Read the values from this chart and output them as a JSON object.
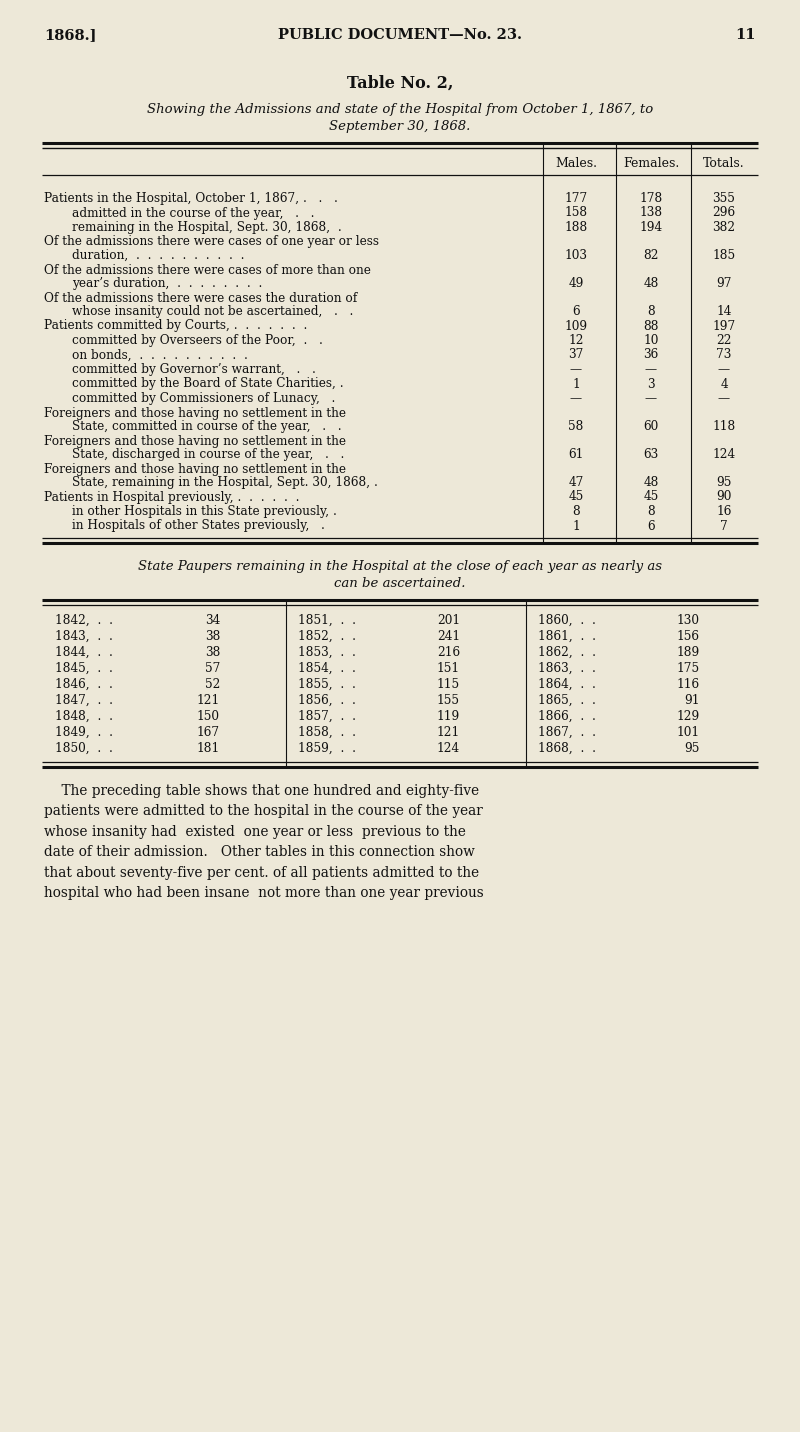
{
  "bg_color": "#ede8d8",
  "text_color": "#1a1a1a",
  "col_headers": [
    "Males.",
    "Females.",
    "Totals."
  ],
  "rows": [
    {
      "label": "Patients in the Hospital, October 1, 1867, .   .   .",
      "indent": 0,
      "vals": [
        "177",
        "178",
        "355"
      ],
      "multiline": false
    },
    {
      "label": "admitted in the course of the year,   .   .",
      "indent": 1,
      "vals": [
        "158",
        "138",
        "296"
      ],
      "multiline": false
    },
    {
      "label": "remaining in the Hospital, Sept. 30, 1868,  .",
      "indent": 1,
      "vals": [
        "188",
        "194",
        "382"
      ],
      "multiline": false
    },
    {
      "label1": "Of the admissions there were cases of one year or less",
      "label2": "duration,  .  .  .  .  .  .  .  .  .  .",
      "indent": 0,
      "vals": [
        "103",
        "82",
        "185"
      ],
      "multiline": true
    },
    {
      "label1": "Of the admissions there were cases of more than one",
      "label2": "year’s duration,  .  .  .  .  .  .  .  .",
      "indent": 0,
      "vals": [
        "49",
        "48",
        "97"
      ],
      "multiline": true
    },
    {
      "label1": "Of the admissions there were cases the duration of",
      "label2": "whose insanity could not be ascertained,   .   .",
      "indent": 0,
      "vals": [
        "6",
        "8",
        "14"
      ],
      "multiline": true
    },
    {
      "label": "Patients committed by Courts, .  .  .  .  .  .  .",
      "indent": 0,
      "vals": [
        "109",
        "88",
        "197"
      ],
      "multiline": false
    },
    {
      "label": "committed by Overseers of the Poor,  .   .",
      "indent": 1,
      "vals": [
        "12",
        "10",
        "22"
      ],
      "multiline": false
    },
    {
      "label": "on bonds,  .  .  .  .  .  .  .  .  .  .",
      "indent": 1,
      "vals": [
        "37",
        "36",
        "73"
      ],
      "multiline": false
    },
    {
      "label": "committed by Governor’s warrant,   .   .",
      "indent": 1,
      "vals": [
        "—",
        "—",
        "—"
      ],
      "multiline": false
    },
    {
      "label": "committed by the Board of State Charities, .",
      "indent": 1,
      "vals": [
        "1",
        "3",
        "4"
      ],
      "multiline": false
    },
    {
      "label": "committed by Commissioners of Lunacy,   .",
      "indent": 1,
      "vals": [
        "—",
        "—",
        "—"
      ],
      "multiline": false
    },
    {
      "label1": "Foreigners and those having no settlement in the",
      "label2": "State, committed in course of the year,   .   .",
      "indent": 0,
      "vals": [
        "58",
        "60",
        "118"
      ],
      "multiline": true
    },
    {
      "label1": "Foreigners and those having no settlement in the",
      "label2": "State, discharged in course of the year,   .   .",
      "indent": 0,
      "vals": [
        "61",
        "63",
        "124"
      ],
      "multiline": true
    },
    {
      "label1": "Foreigners and those having no settlement in the",
      "label2": "State, remaining in the Hospital, Sept. 30, 1868, .",
      "indent": 0,
      "vals": [
        "47",
        "48",
        "95"
      ],
      "multiline": true
    },
    {
      "label": "Patients in Hospital previously, .  .  .  .  .  .",
      "indent": 0,
      "vals": [
        "45",
        "45",
        "90"
      ],
      "multiline": false
    },
    {
      "label": "in other Hospitals in this State previously, .",
      "indent": 1,
      "vals": [
        "8",
        "8",
        "16"
      ],
      "multiline": false
    },
    {
      "label": "in Hospitals of other States previously,   .",
      "indent": 1,
      "vals": [
        "1",
        "6",
        "7"
      ],
      "multiline": false
    }
  ],
  "paupers": [
    [
      "1842,",
      "34",
      "1851,",
      "201",
      "1860,",
      "130"
    ],
    [
      "1843,",
      "38",
      "1852,",
      "241",
      "1861,",
      "156"
    ],
    [
      "1844,",
      "38",
      "1853,",
      "216",
      "1862,",
      "189"
    ],
    [
      "1845,",
      "57",
      "1854,",
      "151",
      "1863,",
      "175"
    ],
    [
      "1846,",
      "52",
      "1855,",
      "115",
      "1864,",
      "116"
    ],
    [
      "1847,",
      "121",
      "1856,",
      "155",
      "1865,",
      "91"
    ],
    [
      "1848,",
      "150",
      "1857,",
      "119",
      "1866,",
      "129"
    ],
    [
      "1849,",
      "167",
      "1858,",
      "121",
      "1867,",
      "101"
    ],
    [
      "1850,",
      "181",
      "1859,",
      "124",
      "1868,",
      "95"
    ]
  ],
  "footer_lines": [
    "    The preceding table shows that one hundred and eighty-five",
    "patients were admitted to the hospital in the course of the year",
    "whose insanity had  existed  one year or less  previous to the",
    "date of their admission.   Other tables in this connection show",
    "that about seventy-five per cent. of all patients admitted to the",
    "hospital who had been insane  not more than one year previous"
  ]
}
